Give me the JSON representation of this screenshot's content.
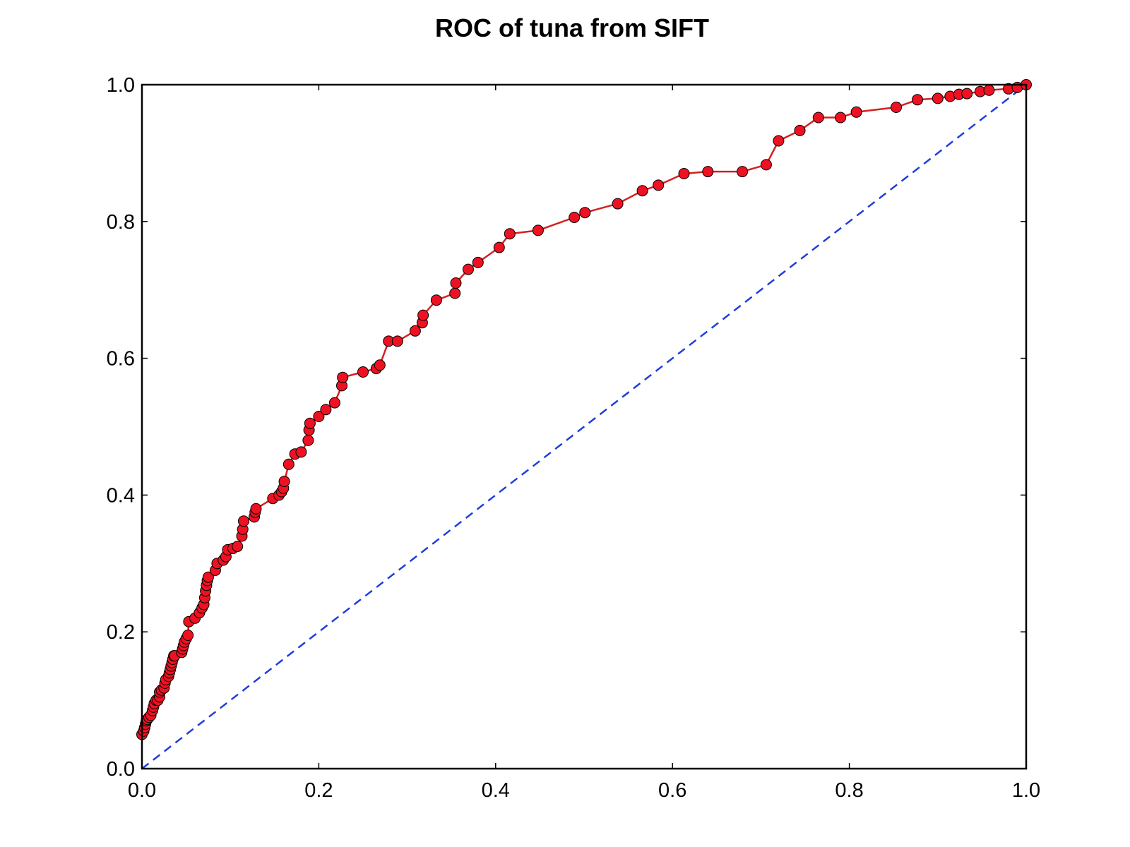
{
  "chart_data": {
    "type": "line",
    "title": "ROC of tuna from SIFT",
    "xlabel": "",
    "ylabel": "",
    "xlim": [
      0.0,
      1.0
    ],
    "ylim": [
      0.0,
      1.0
    ],
    "xticks": [
      "0.0",
      "0.2",
      "0.4",
      "0.6",
      "0.8",
      "1.0"
    ],
    "yticks": [
      "0.0",
      "0.2",
      "0.4",
      "0.6",
      "0.8",
      "1.0"
    ],
    "grid": false,
    "legend": "none",
    "series": [
      {
        "style": "line-with-circle-markers",
        "line_color": "#d42020",
        "marker_color": "#ee1122",
        "points": [
          [
            0.0,
            0.05
          ],
          [
            0.002,
            0.055
          ],
          [
            0.003,
            0.06
          ],
          [
            0.004,
            0.065
          ],
          [
            0.005,
            0.07
          ],
          [
            0.006,
            0.072
          ],
          [
            0.008,
            0.075
          ],
          [
            0.01,
            0.078
          ],
          [
            0.012,
            0.085
          ],
          [
            0.013,
            0.09
          ],
          [
            0.014,
            0.095
          ],
          [
            0.016,
            0.1
          ],
          [
            0.018,
            0.1
          ],
          [
            0.02,
            0.105
          ],
          [
            0.02,
            0.112
          ],
          [
            0.022,
            0.115
          ],
          [
            0.025,
            0.118
          ],
          [
            0.026,
            0.125
          ],
          [
            0.027,
            0.13
          ],
          [
            0.03,
            0.135
          ],
          [
            0.031,
            0.14
          ],
          [
            0.032,
            0.145
          ],
          [
            0.033,
            0.15
          ],
          [
            0.034,
            0.155
          ],
          [
            0.035,
            0.16
          ],
          [
            0.036,
            0.165
          ],
          [
            0.037,
            0.165
          ],
          [
            0.045,
            0.17
          ],
          [
            0.046,
            0.175
          ],
          [
            0.047,
            0.18
          ],
          [
            0.048,
            0.185
          ],
          [
            0.05,
            0.19
          ],
          [
            0.052,
            0.195
          ],
          [
            0.053,
            0.215
          ],
          [
            0.06,
            0.22
          ],
          [
            0.065,
            0.228
          ],
          [
            0.068,
            0.235
          ],
          [
            0.07,
            0.24
          ],
          [
            0.071,
            0.25
          ],
          [
            0.072,
            0.26
          ],
          [
            0.073,
            0.268
          ],
          [
            0.074,
            0.275
          ],
          [
            0.075,
            0.28
          ],
          [
            0.083,
            0.29
          ],
          [
            0.085,
            0.3
          ],
          [
            0.092,
            0.305
          ],
          [
            0.095,
            0.31
          ],
          [
            0.097,
            0.32
          ],
          [
            0.103,
            0.322
          ],
          [
            0.108,
            0.325
          ],
          [
            0.113,
            0.34
          ],
          [
            0.114,
            0.35
          ],
          [
            0.115,
            0.362
          ],
          [
            0.127,
            0.368
          ],
          [
            0.128,
            0.375
          ],
          [
            0.129,
            0.38
          ],
          [
            0.148,
            0.395
          ],
          [
            0.155,
            0.4
          ],
          [
            0.158,
            0.405
          ],
          [
            0.16,
            0.41
          ],
          [
            0.161,
            0.42
          ],
          [
            0.166,
            0.445
          ],
          [
            0.173,
            0.46
          ],
          [
            0.18,
            0.463
          ],
          [
            0.188,
            0.48
          ],
          [
            0.189,
            0.495
          ],
          [
            0.19,
            0.505
          ],
          [
            0.2,
            0.515
          ],
          [
            0.208,
            0.525
          ],
          [
            0.218,
            0.535
          ],
          [
            0.226,
            0.56
          ],
          [
            0.227,
            0.572
          ],
          [
            0.25,
            0.58
          ],
          [
            0.265,
            0.585
          ],
          [
            0.269,
            0.59
          ],
          [
            0.279,
            0.625
          ],
          [
            0.289,
            0.625
          ],
          [
            0.309,
            0.64
          ],
          [
            0.317,
            0.652
          ],
          [
            0.318,
            0.663
          ],
          [
            0.333,
            0.685
          ],
          [
            0.354,
            0.695
          ],
          [
            0.355,
            0.71
          ],
          [
            0.369,
            0.73
          ],
          [
            0.38,
            0.74
          ],
          [
            0.404,
            0.762
          ],
          [
            0.416,
            0.782
          ],
          [
            0.448,
            0.787
          ],
          [
            0.489,
            0.806
          ],
          [
            0.501,
            0.813
          ],
          [
            0.538,
            0.826
          ],
          [
            0.566,
            0.845
          ],
          [
            0.584,
            0.853
          ],
          [
            0.613,
            0.87
          ],
          [
            0.64,
            0.873
          ],
          [
            0.679,
            0.873
          ],
          [
            0.706,
            0.883
          ],
          [
            0.72,
            0.918
          ],
          [
            0.744,
            0.933
          ],
          [
            0.765,
            0.952
          ],
          [
            0.79,
            0.952
          ],
          [
            0.808,
            0.96
          ],
          [
            0.853,
            0.967
          ],
          [
            0.877,
            0.978
          ],
          [
            0.9,
            0.98
          ],
          [
            0.914,
            0.983
          ],
          [
            0.924,
            0.986
          ],
          [
            0.933,
            0.987
          ],
          [
            0.948,
            0.99
          ],
          [
            0.958,
            0.992
          ],
          [
            0.98,
            0.994
          ],
          [
            0.99,
            0.996
          ],
          [
            1.0,
            1.0
          ]
        ]
      },
      {
        "style": "dashed-line",
        "line_color": "#1f3ddf",
        "points": [
          [
            0.0,
            0.0
          ],
          [
            1.0,
            1.0
          ]
        ]
      }
    ]
  }
}
